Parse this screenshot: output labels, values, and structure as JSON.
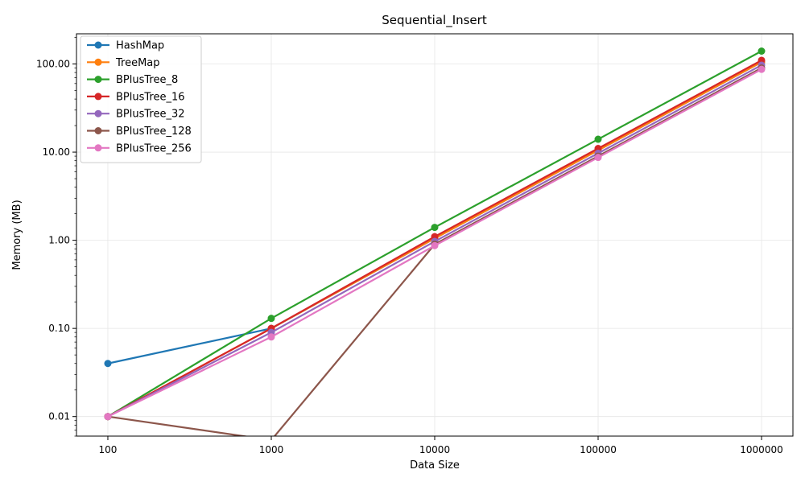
{
  "chart_data": {
    "type": "line",
    "title": "Sequential_Insert",
    "xlabel": "Data Size",
    "ylabel": "Memory (MB)",
    "x": [
      100,
      1000,
      10000,
      100000,
      1000000
    ],
    "x_tick_labels": [
      "100",
      "1000",
      "10000",
      "100000",
      "1000000"
    ],
    "y_scale": "log",
    "y_ticks": [
      0.01,
      0.1,
      1,
      10,
      100
    ],
    "y_tick_labels": [
      "0.01",
      "0.10",
      "1.00",
      "10.00",
      "100.00"
    ],
    "ylim": [
      0.006,
      220
    ],
    "grid": true,
    "legend_position": "upper left",
    "series": [
      {
        "name": "HashMap",
        "color": "#1f77b4",
        "values": [
          0.04,
          0.1,
          1.05,
          10.5,
          105
        ]
      },
      {
        "name": "TreeMap",
        "color": "#ff7f0e",
        "values": [
          0.01,
          0.1,
          1.05,
          10.5,
          105
        ]
      },
      {
        "name": "BPlusTree_8",
        "color": "#2ca02c",
        "values": [
          0.01,
          0.13,
          1.4,
          14,
          140
        ]
      },
      {
        "name": "BPlusTree_16",
        "color": "#d62728",
        "values": [
          0.01,
          0.1,
          1.1,
          11,
          110
        ]
      },
      {
        "name": "BPlusTree_32",
        "color": "#9467bd",
        "values": [
          0.01,
          0.09,
          0.97,
          9.7,
          97
        ]
      },
      {
        "name": "BPlusTree_128",
        "color": "#8c564b",
        "values": [
          0.01,
          0,
          0.9,
          9.0,
          90
        ]
      },
      {
        "name": "BPlusTree_256",
        "color": "#e377c2",
        "values": [
          0.01,
          0.08,
          0.87,
          8.7,
          87
        ]
      }
    ]
  }
}
